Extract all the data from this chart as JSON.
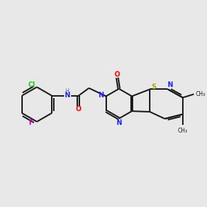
{
  "bg": "#e8e8e8",
  "bond_color": "#1a1a1a",
  "lw": 1.5,
  "figsize": [
    3.0,
    3.0
  ],
  "dpi": 100,
  "colors": {
    "N": "#2222ff",
    "O": "#ff0000",
    "S": "#aaaa00",
    "F": "#cc00cc",
    "Cl": "#22cc22",
    "H": "#666688",
    "C": "#1a1a1a"
  }
}
